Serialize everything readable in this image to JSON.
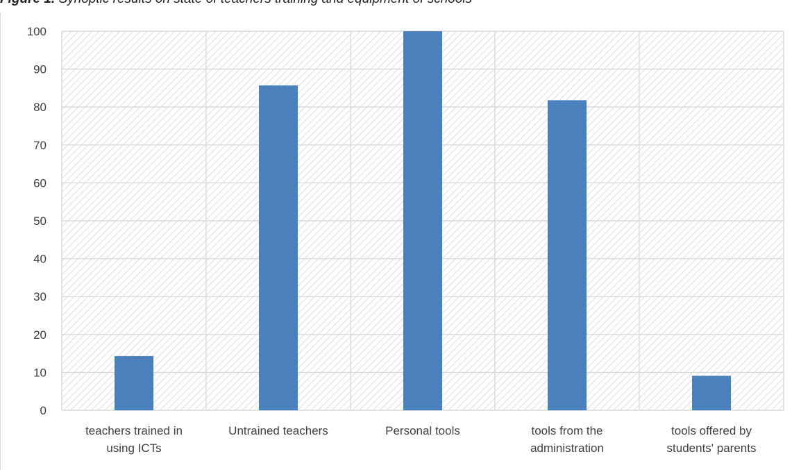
{
  "caption": {
    "label": "Figure 1.",
    "text": "Synoptic results on state of teachers training and equipment of schools"
  },
  "chart_data": {
    "type": "bar",
    "categories": [
      [
        "teachers trained in",
        "using ICTs"
      ],
      [
        "Untrained teachers"
      ],
      [
        "Personal tools"
      ],
      [
        "tools from the",
        "administration"
      ],
      [
        "tools offered by",
        "students' parents"
      ]
    ],
    "values": [
      14.3,
      85.7,
      100,
      81.8,
      9.1
    ],
    "ylim": [
      0,
      100
    ],
    "yticks": [
      0,
      10,
      20,
      30,
      40,
      50,
      60,
      70,
      80,
      90,
      100
    ],
    "grid": true,
    "plot_background": "hatched",
    "bar_color": "#4a81bd",
    "grid_color": "#d9d9d9",
    "hatch_color": "#d6d6d6"
  }
}
